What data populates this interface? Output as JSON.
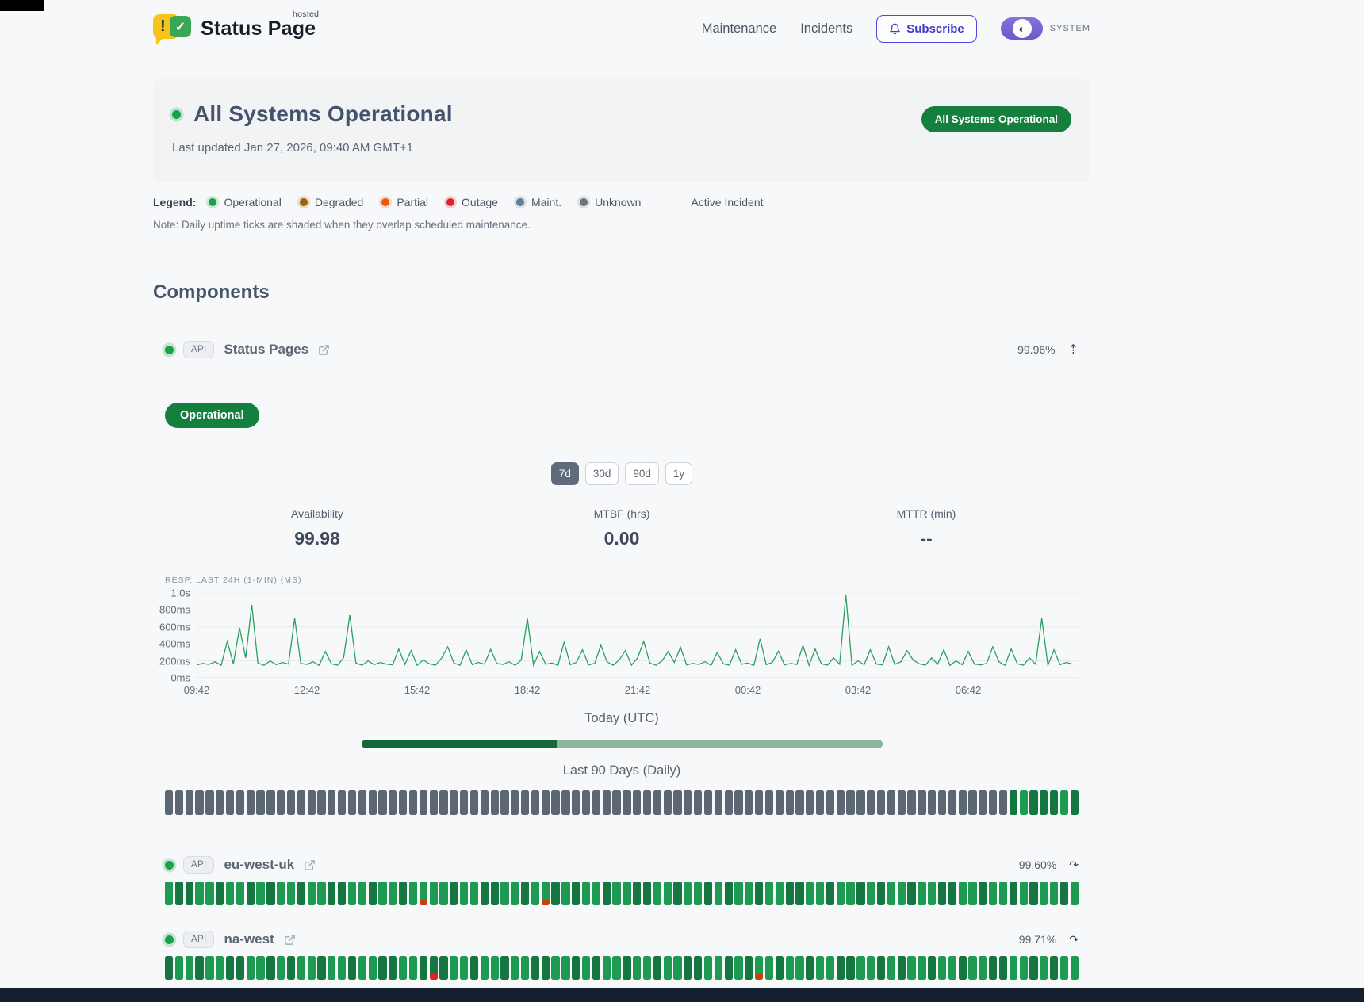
{
  "header": {
    "brand": {
      "name": "Status Page",
      "superscript": "hosted",
      "excl": "!",
      "check": "✓"
    },
    "nav": {
      "maintenance": "Maintenance",
      "incidents": "Incidents"
    },
    "subscribe_label": "Subscribe",
    "theme_label": "SYSTEM",
    "theme_knob_glyph": "◐"
  },
  "hero": {
    "title": "All Systems Operational",
    "last_updated": "Last updated Jan 27, 2026, 09:40 AM GMT+1",
    "badge": "All Systems Operational",
    "badge_color": "#15803d"
  },
  "legend": {
    "label": "Legend:",
    "items": [
      {
        "label": "Operational",
        "color": "#16a34a"
      },
      {
        "label": "Degraded",
        "color": "#a16207"
      },
      {
        "label": "Partial",
        "color": "#ea580c"
      },
      {
        "label": "Outage",
        "color": "#dc2626"
      },
      {
        "label": "Maint.",
        "color": "#5b7f94"
      },
      {
        "label": "Unknown",
        "color": "#6b7280"
      }
    ],
    "active_incident": "Active Incident",
    "note": "Note: Daily uptime ticks are shaded when they overlap scheduled maintenance."
  },
  "components": {
    "heading": "Components",
    "expanded": {
      "type_badge": "API",
      "name": "Status Pages",
      "uptime": "99.96%",
      "collapse_icon": "⇡",
      "status_badge": "Operational",
      "ranges": [
        {
          "label": "7d",
          "selected": true
        },
        {
          "label": "30d",
          "selected": false
        },
        {
          "label": "90d",
          "selected": false
        },
        {
          "label": "1y",
          "selected": false
        }
      ],
      "stats": [
        {
          "label": "Availability",
          "value": "99.98"
        },
        {
          "label": "MTBF (hrs)",
          "value": "0.00"
        },
        {
          "label": "MTTR (min)",
          "value": "--"
        }
      ],
      "today_label": "Today (UTC)",
      "today_progress_pct": 37.6,
      "history_label": "Last 90 Days (Daily)",
      "history_ticks": "uuuuuuuuuuuuuuuuuuuuuuuuuuuuuuuuuuuuuuuuuuuuuuuuuuuuuuuuuuuuuuuuuuuuuuuuuuuuuuuuuuudgdddgd"
    },
    "rows": [
      {
        "type_badge": "API",
        "name": "eu-west-uk",
        "uptime": "99.60%",
        "expand_icon": "↷",
        "ticks": "gddggdggdgdggdggddggdggdgpggdggddggdgpdgdggdggddggdggdgdggdggddggdggdgdggdggddggdggdgdggdg"
      },
      {
        "type_badge": "API",
        "name": "na-west",
        "uptime": "99.71%",
        "expand_icon": "↷",
        "ticks": "dggdggddggdgdggdggdggddggdrdggdggdggddggdgdggdggdggddggdgdpgdggdggddggdgdggdggdggddggdgdgg"
      }
    ]
  },
  "chart_data": {
    "type": "line",
    "title": "RESP. LAST 24H (1-MIN) (MS)",
    "series_name": "Response time (ms)",
    "line_color": "#2aa05f",
    "ylim": [
      0,
      1000
    ],
    "y_tick_labels_top_to_bottom": [
      "1.0s",
      "800ms",
      "600ms",
      "400ms",
      "200ms",
      "0ms"
    ],
    "x_tick_labels": [
      "09:42",
      "12:42",
      "15:42",
      "18:42",
      "21:42",
      "00:42",
      "03:42",
      "06:42"
    ],
    "x_span_min": 1440,
    "t_step_min": 10,
    "values": [
      152,
      170,
      158,
      190,
      148,
      430,
      165,
      590,
      235,
      860,
      175,
      148,
      200,
      155,
      182,
      162,
      700,
      170,
      158,
      190,
      148,
      310,
      165,
      150,
      235,
      740,
      175,
      148,
      200,
      155,
      182,
      162,
      152,
      340,
      158,
      320,
      148,
      210,
      165,
      150,
      235,
      365,
      175,
      148,
      330,
      155,
      182,
      162,
      335,
      170,
      158,
      190,
      148,
      210,
      700,
      150,
      310,
      160,
      175,
      148,
      420,
      155,
      182,
      330,
      152,
      170,
      385,
      190,
      148,
      210,
      320,
      150,
      235,
      430,
      175,
      148,
      200,
      310,
      182,
      360,
      152,
      170,
      158,
      190,
      148,
      300,
      165,
      150,
      330,
      160,
      175,
      148,
      460,
      155,
      182,
      315,
      152,
      170,
      158,
      380,
      148,
      340,
      165,
      150,
      235,
      160,
      980,
      148,
      200,
      155,
      330,
      162,
      152,
      365,
      158,
      190,
      320,
      210,
      165,
      150,
      235,
      160,
      330,
      148,
      200,
      155,
      310,
      162,
      152,
      170,
      365,
      190,
      148,
      340,
      165,
      150,
      235,
      160,
      700,
      148,
      330,
      155,
      182,
      162
    ]
  }
}
